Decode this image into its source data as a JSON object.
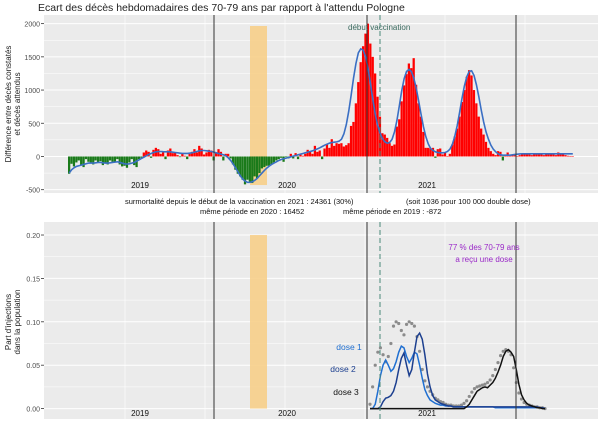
{
  "colors": {
    "panel_bg": "#ebebeb",
    "grid": "#ffffff",
    "excess": "#ff0000",
    "deficit": "#1a7a1a",
    "smooth": "#3a6fc4",
    "highlight": "#f7cf8a",
    "vaccination_line": "#4a8a7a",
    "dose1": "#1f6fd1",
    "dose2": "#1c3f8f",
    "dose3": "#111111",
    "dots": "#8c8c8c",
    "annotation_purple": "#9a28c8",
    "text": "#222222"
  },
  "chart_data": [
    {
      "type": "bar",
      "title": "Ecart des décès hebdomadaires des 70-79 ans par rapport à l'attendu Pologne",
      "ylabel": "Différence entre décès constatés et décès attendus",
      "ylabel_lines": [
        "Différence entre décès constatés",
        "et décès attendus"
      ],
      "ylim": [
        -550,
        2130
      ],
      "yticks": [
        -500,
        0,
        500,
        1000,
        1500,
        2000
      ],
      "year_labels": [
        "2019",
        "2020",
        "2021"
      ],
      "vaccination_label": "début vaccination",
      "notes": {
        "line1_left": "surmortalité depuis le début de la vaccination en 2021 : 24361  (30%)",
        "line1_right": "(soit 1036 pour 100 000 double dose)",
        "line2_left": "même période en 2020 : 16452",
        "line2_right": "même période en 2019 : -872"
      },
      "values": [
        -260,
        -110,
        -150,
        -90,
        -60,
        -130,
        -160,
        -40,
        -80,
        -100,
        -120,
        -60,
        -90,
        -70,
        -130,
        -100,
        -120,
        -60,
        -80,
        -90,
        -40,
        -120,
        -150,
        -140,
        -170,
        -90,
        -40,
        -130,
        -160,
        -40,
        -20,
        60,
        90,
        70,
        -20,
        100,
        130,
        110,
        40,
        60,
        -40,
        90,
        120,
        50,
        60,
        20,
        -10,
        40,
        10,
        -40,
        40,
        70,
        110,
        60,
        160,
        120,
        30,
        60,
        100,
        90,
        -60,
        60,
        110,
        70,
        -60,
        40,
        40,
        -30,
        -120,
        -200,
        -260,
        -300,
        -350,
        -420,
        -350,
        -380,
        -400,
        -300,
        -330,
        -250,
        -180,
        -160,
        -140,
        -140,
        -120,
        -90,
        -60,
        -40,
        -20,
        -80,
        -10,
        -30,
        40,
        -30,
        50,
        -40,
        30,
        10,
        40,
        100,
        80,
        40,
        160,
        70,
        90,
        -40,
        120,
        190,
        130,
        260,
        160,
        200,
        190,
        200,
        150,
        170,
        200,
        460,
        520,
        800,
        1120,
        1420,
        1660,
        1850,
        2000,
        1700,
        1500,
        1250,
        900,
        600,
        350,
        330,
        280,
        200,
        160,
        180,
        450,
        560,
        830,
        1070,
        1240,
        1400,
        1330,
        1480,
        1080,
        800,
        600,
        370,
        130,
        130,
        120,
        130,
        -20,
        110,
        120,
        30,
        60,
        0,
        40,
        180,
        300,
        420,
        600,
        820,
        1000,
        1200,
        1300,
        1220,
        1000,
        800,
        600,
        420,
        330,
        220,
        130,
        80,
        40,
        20,
        80,
        70,
        -60,
        30,
        60,
        20,
        30,
        20,
        0,
        20,
        30,
        40,
        30,
        40,
        20,
        30,
        50,
        40,
        30,
        20,
        30,
        40,
        50,
        40,
        20,
        60,
        30,
        40,
        20,
        10,
        0,
        0
      ],
      "smooth": [
        -250,
        -200,
        -170,
        -150,
        -140,
        -130,
        -120,
        -110,
        -100,
        -100,
        -100,
        -95,
        -90,
        -90,
        -95,
        -100,
        -100,
        -95,
        -90,
        -85,
        -80,
        -90,
        -100,
        -110,
        -115,
        -110,
        -100,
        -90,
        -70,
        -50,
        -30,
        -10,
        10,
        30,
        45,
        60,
        70,
        75,
        75,
        72,
        70,
        70,
        70,
        65,
        60,
        55,
        50,
        45,
        45,
        45,
        50,
        55,
        65,
        75,
        85,
        90,
        90,
        85,
        80,
        75,
        65,
        55,
        45,
        35,
        25,
        10,
        -20,
        -60,
        -110,
        -170,
        -230,
        -290,
        -340,
        -370,
        -390,
        -390,
        -380,
        -360,
        -330,
        -290,
        -250,
        -210,
        -175,
        -145,
        -120,
        -100,
        -80,
        -60,
        -45,
        -35,
        -25,
        -15,
        -5,
        5,
        15,
        25,
        35,
        45,
        55,
        65,
        75,
        85,
        100,
        115,
        130,
        150,
        170,
        185,
        200,
        210,
        215,
        220,
        230,
        260,
        340,
        480,
        680,
        920,
        1180,
        1400,
        1560,
        1620,
        1600,
        1500,
        1330,
        1100,
        860,
        640,
        470,
        350,
        270,
        220,
        200,
        210,
        260,
        370,
        540,
        760,
        990,
        1170,
        1280,
        1310,
        1280,
        1180,
        1030,
        840,
        640,
        450,
        300,
        190,
        120,
        90,
        70,
        60,
        55,
        55,
        60,
        75,
        110,
        180,
        300,
        460,
        660,
        870,
        1060,
        1200,
        1280,
        1290,
        1220,
        1080,
        900,
        700,
        520,
        370,
        260,
        170,
        110,
        70,
        40,
        25,
        20,
        20,
        20,
        20,
        25,
        30,
        35,
        38,
        40,
        40,
        40,
        40,
        40,
        40,
        40,
        40,
        40,
        40,
        40,
        40,
        40,
        40,
        40,
        40,
        40,
        40,
        40,
        40,
        40,
        40
      ]
    },
    {
      "type": "line",
      "ylabel": "Part d'injections dans la population",
      "ylabel_lines": [
        "Part d'injections",
        "dans la population"
      ],
      "ylim": [
        -0.012,
        0.215
      ],
      "yticks": [
        0.0,
        0.05,
        0.1,
        0.15,
        0.2
      ],
      "ytick_labels": [
        "0.00",
        "0.05",
        "0.10",
        "0.15",
        "0.20"
      ],
      "year_labels": [
        "2019",
        "2020",
        "2021"
      ],
      "annotation": [
        "77 % des 70-79 ans",
        "a reçu une dose"
      ],
      "series": [
        {
          "name": "dose 1",
          "values": [
            0,
            0,
            0.005,
            0.02,
            0.038,
            0.05,
            0.056,
            0.05,
            0.043,
            0.046,
            0.054,
            0.065,
            0.072,
            0.07,
            0.06,
            0.053,
            0.058,
            0.065,
            0.063,
            0.05,
            0.035,
            0.022,
            0.015,
            0.01,
            0.008,
            0.006,
            0.005,
            0.004,
            0.004,
            0.003,
            0.003,
            0.003,
            0.002,
            0.002,
            0.002,
            0.002,
            0.002,
            0.002,
            0.002,
            0.002,
            0.002,
            0.002,
            0.002,
            0.002,
            0.002,
            0.002,
            0.002,
            0.002,
            0.001,
            0.001,
            0.001,
            0.001,
            0.001,
            0.001,
            0.001,
            0.001,
            0.001,
            0.001,
            0.001,
            0.001,
            0.001,
            0.001,
            0.001,
            0.001,
            0.001,
            0.001,
            0.001,
            0.0
          ]
        },
        {
          "name": "dose 2",
          "values": [
            0,
            0,
            0,
            0,
            0.002,
            0.008,
            0.012,
            0.013,
            0.015,
            0.02,
            0.03,
            0.045,
            0.058,
            0.064,
            0.05,
            0.038,
            0.045,
            0.065,
            0.083,
            0.087,
            0.08,
            0.062,
            0.04,
            0.025,
            0.015,
            0.01,
            0.008,
            0.006,
            0.005,
            0.004,
            0.003,
            0.003,
            0.002,
            0.002,
            0.002,
            0.002,
            0.002,
            0.002,
            0.002,
            0.002,
            0.002,
            0.002,
            0.002,
            0.002,
            0.002,
            0.002,
            0.002,
            0.002,
            0.002,
            0.002,
            0.002,
            0.002,
            0.002,
            0.002,
            0.002,
            0.002,
            0.002,
            0.002,
            0.002,
            0.002,
            0.002,
            0.002,
            0.002,
            0.002,
            0.002,
            0.001,
            0.001,
            0.0
          ]
        },
        {
          "name": "dose 3",
          "values": [
            0,
            0,
            0,
            0,
            0,
            0,
            0,
            0,
            0,
            0,
            0,
            0,
            0,
            0,
            0,
            0,
            0,
            0,
            0,
            0,
            0,
            0,
            0,
            0,
            0,
            0,
            0,
            0,
            0,
            0,
            0,
            0,
            0,
            0,
            0,
            0,
            0,
            0.002,
            0.005,
            0.01,
            0.015,
            0.02,
            0.022,
            0.024,
            0.025,
            0.024,
            0.027,
            0.03,
            0.035,
            0.042,
            0.05,
            0.06,
            0.066,
            0.068,
            0.065,
            0.06,
            0.045,
            0.028,
            0.016,
            0.01,
            0.006,
            0.004,
            0.003,
            0.002,
            0.001,
            0.001,
            0,
            0
          ]
        }
      ],
      "dots": [
        0.005,
        0.025,
        0.05,
        0.065,
        0.07,
        0.062,
        0.054,
        0.06,
        0.075,
        0.095,
        0.1,
        0.098,
        0.09,
        0.085,
        0.097,
        0.1,
        0.098,
        0.095,
        0.083,
        0.066,
        0.045,
        0.032,
        0.025,
        0.02,
        0.016,
        0.012,
        0.01,
        0.008,
        0.007,
        0.005,
        0.004,
        0.004,
        0.003,
        0.003,
        0.003,
        0.004,
        0.006,
        0.009,
        0.014,
        0.019,
        0.023,
        0.025,
        0.026,
        0.027,
        0.028,
        0.03,
        0.033,
        0.038,
        0.045,
        0.053,
        0.061,
        0.066,
        0.068,
        0.066,
        0.062,
        0.047,
        0.03,
        0.018,
        0.011,
        0.007,
        0.005,
        0.004,
        0.003,
        0.002,
        0.002,
        0.001,
        0.001,
        0
      ]
    }
  ]
}
